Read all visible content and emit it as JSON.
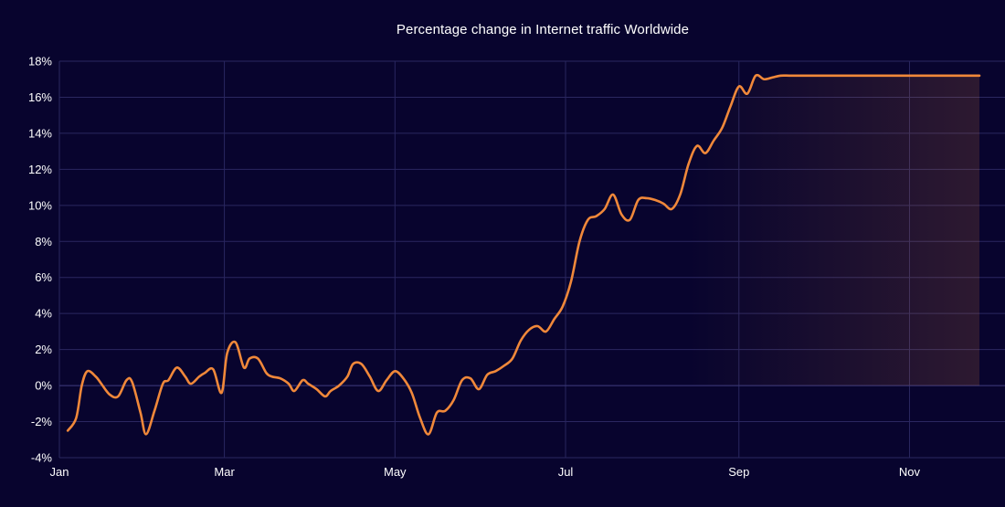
{
  "chart_data": {
    "type": "area",
    "title": "Percentage change in Internet traffic Worldwide",
    "xlabel": "",
    "ylabel": "",
    "ylim": [
      -4,
      18
    ],
    "y_ticks": [
      "-4%",
      "-2%",
      "0%",
      "2%",
      "4%",
      "6%",
      "8%",
      "10%",
      "12%",
      "14%",
      "16%",
      "18%"
    ],
    "x_ticks": [
      "Jan",
      "Mar",
      "May",
      "Jul",
      "Sep",
      "Nov"
    ],
    "grid": true,
    "series": [
      {
        "color": "#f0883a",
        "fill_color": "#f0883a",
        "x": [
          "2023-01-04",
          "2023-01-07",
          "2023-01-09",
          "2023-01-11",
          "2023-01-14",
          "2023-01-16",
          "2023-01-19",
          "2023-01-22",
          "2023-01-25",
          "2023-01-27",
          "2023-01-30",
          "2023-02-01",
          "2023-02-04",
          "2023-02-07",
          "2023-02-09",
          "2023-02-12",
          "2023-02-15",
          "2023-02-17",
          "2023-02-20",
          "2023-02-22",
          "2023-02-25",
          "2023-02-28",
          "2023-03-02",
          "2023-03-05",
          "2023-03-08",
          "2023-03-10",
          "2023-03-13",
          "2023-03-16",
          "2023-03-18",
          "2023-03-21",
          "2023-03-24",
          "2023-03-26",
          "2023-03-29",
          "2023-03-31",
          "2023-04-03",
          "2023-04-06",
          "2023-04-08",
          "2023-04-11",
          "2023-04-14",
          "2023-04-16",
          "2023-04-19",
          "2023-04-22",
          "2023-04-25",
          "2023-04-28",
          "2023-05-01",
          "2023-05-04",
          "2023-05-07",
          "2023-05-10",
          "2023-05-13",
          "2023-05-16",
          "2023-05-19",
          "2023-05-22",
          "2023-05-25",
          "2023-05-28",
          "2023-05-31",
          "2023-06-03",
          "2023-06-06",
          "2023-06-09",
          "2023-06-12",
          "2023-06-15",
          "2023-06-18",
          "2023-06-21",
          "2023-06-24",
          "2023-06-27",
          "2023-06-30",
          "2023-07-03",
          "2023-07-06",
          "2023-07-09",
          "2023-07-12",
          "2023-07-15",
          "2023-07-18",
          "2023-07-21",
          "2023-07-24",
          "2023-07-27",
          "2023-07-30",
          "2023-08-02",
          "2023-08-05",
          "2023-08-08",
          "2023-08-11",
          "2023-08-14",
          "2023-08-17",
          "2023-08-20",
          "2023-08-23",
          "2023-08-26",
          "2023-08-29",
          "2023-09-01",
          "2023-09-04",
          "2023-09-07",
          "2023-09-10",
          "2023-09-13",
          "2023-09-16",
          "2023-09-19",
          "2023-09-22",
          "2023-09-25",
          "2023-09-28",
          "2023-10-01",
          "2023-10-04",
          "2023-10-07",
          "2023-10-10",
          "2023-10-13",
          "2023-10-16",
          "2023-10-19",
          "2023-10-22",
          "2023-10-25",
          "2023-10-28",
          "2023-10-31",
          "2023-11-03",
          "2023-11-06",
          "2023-11-09",
          "2023-11-12",
          "2023-11-15",
          "2023-11-18",
          "2023-11-21",
          "2023-11-24",
          "2023-11-26",
          "2023-11-28"
        ],
        "values": [
          -2.5,
          -1.8,
          0.0,
          0.8,
          0.5,
          0.1,
          -0.5,
          -0.6,
          0.3,
          0.2,
          -1.5,
          -2.7,
          -1.4,
          0.1,
          0.3,
          1.0,
          0.5,
          0.1,
          0.5,
          0.7,
          0.9,
          -0.4,
          1.8,
          2.4,
          1.0,
          1.5,
          1.5,
          0.7,
          0.5,
          0.4,
          0.1,
          -0.3,
          0.3,
          0.1,
          -0.2,
          -0.6,
          -0.3,
          0.0,
          0.5,
          1.2,
          1.2,
          0.5,
          -0.3,
          0.3,
          0.8,
          0.4,
          -0.4,
          -1.8,
          -2.7,
          -1.5,
          -1.4,
          -0.8,
          0.3,
          0.4,
          -0.2,
          0.6,
          0.8,
          1.1,
          1.5,
          2.5,
          3.1,
          3.3,
          3.0,
          3.7,
          4.4,
          5.8,
          8.0,
          9.2,
          9.4,
          9.8,
          10.6,
          9.5,
          9.2,
          10.3,
          10.4,
          10.3,
          10.1,
          9.8,
          10.6,
          12.3,
          13.3,
          12.9,
          13.6,
          14.3,
          15.5,
          16.6,
          16.2,
          17.2,
          17.0,
          17.1,
          17.2,
          17.2,
          17.2,
          17.2,
          17.2,
          17.2,
          17.2,
          17.2,
          17.2,
          17.2,
          17.2,
          17.2,
          17.2,
          17.2,
          17.2,
          17.2,
          17.2,
          17.2,
          17.2,
          17.2,
          17.2,
          17.2,
          17.2,
          17.2,
          17.2,
          17.2
        ]
      }
    ]
  }
}
